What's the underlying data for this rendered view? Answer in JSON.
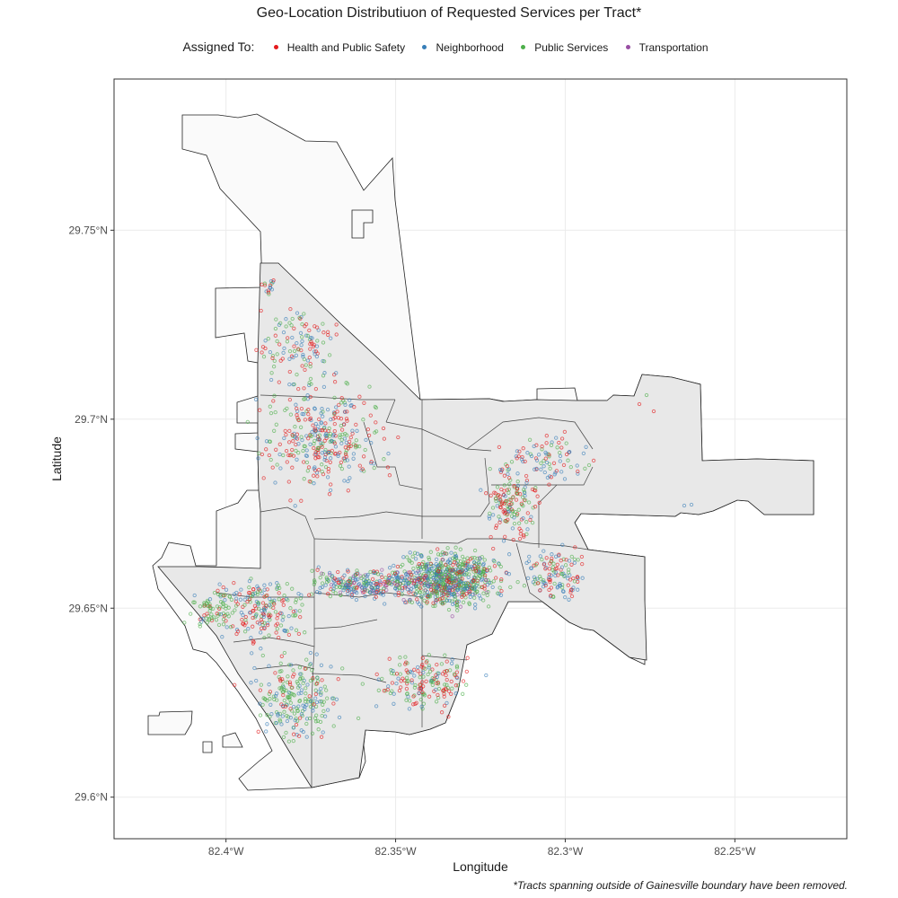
{
  "title": "Geo-Location Distributiuon of Requested Services per Tract*",
  "legend": {
    "title": "Assigned To:",
    "items": [
      {
        "label": "Health and Public Safety",
        "color": "#e41a1c"
      },
      {
        "label": "Neighborhood",
        "color": "#377eb8"
      },
      {
        "label": "Public Services",
        "color": "#4daf4a"
      },
      {
        "label": "Transportation",
        "color": "#984ea3"
      }
    ]
  },
  "axes": {
    "xlabel": "Longitude",
    "ylabel": "Latitude",
    "x_ticks": [
      {
        "value": -82.4,
        "label": "82.4°W"
      },
      {
        "value": -82.35,
        "label": "82.35°W"
      },
      {
        "value": -82.3,
        "label": "82.3°W"
      },
      {
        "value": -82.25,
        "label": "82.25°W"
      }
    ],
    "y_ticks": [
      {
        "value": 29.6,
        "label": "29.6°N"
      },
      {
        "value": 29.65,
        "label": "29.65°N"
      },
      {
        "value": 29.7,
        "label": "29.7°N"
      },
      {
        "value": 29.75,
        "label": "29.75°N"
      }
    ],
    "xlim": [
      -82.433,
      -82.217
    ],
    "ylim": [
      29.589,
      29.79
    ],
    "grid": true
  },
  "footnote": "*Tracts spanning outside of Gainesville boundary have been removed."
}
